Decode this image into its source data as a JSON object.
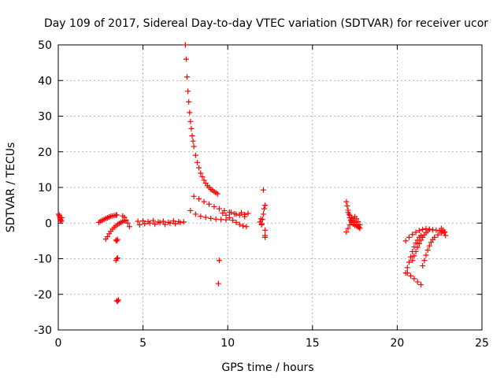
{
  "chart_data": {
    "type": "scatter",
    "title": "Day 109 of 2017, Sidereal Day-to-day VTEC variation (SDTVAR) for receiver ucor",
    "xlabel": "GPS time / hours",
    "ylabel": "SDTVAR / TECUs",
    "xlim": [
      0,
      25
    ],
    "ylim": [
      -30,
      50
    ],
    "xticks": [
      "0",
      "5",
      "10",
      "15",
      "20",
      "25"
    ],
    "yticks": [
      "-30",
      "-20",
      "-10",
      "0",
      "10",
      "20",
      "30",
      "40",
      "50"
    ],
    "grid": true,
    "marker": "+",
    "color": "#ff0000",
    "series": [
      {
        "name": "t0",
        "x": [
          0.02,
          0.05,
          0.08,
          0.1,
          0.12,
          0.15,
          0.18,
          0.2
        ],
        "y": [
          2.5,
          2.2,
          1.8,
          1.4,
          1.0,
          0.8,
          0.5,
          1.5
        ]
      },
      {
        "name": "t1",
        "x": [
          2.4,
          2.5,
          2.6,
          2.7,
          2.8,
          2.9,
          3.0,
          3.1,
          3.2,
          3.3,
          3.4,
          3.45
        ],
        "y": [
          0.2,
          0.5,
          0.8,
          1.0,
          1.3,
          1.5,
          1.7,
          1.9,
          2.0,
          2.1,
          2.2,
          2.3
        ]
      },
      {
        "name": "t2",
        "x": [
          2.8,
          2.9,
          3.0,
          3.1,
          3.2,
          3.3,
          3.4,
          3.5,
          3.6,
          3.7,
          3.8,
          3.9
        ],
        "y": [
          -4.5,
          -3.8,
          -3.0,
          -2.3,
          -1.7,
          -1.2,
          -0.8,
          -0.4,
          -0.1,
          0.2,
          0.4,
          0.6
        ]
      },
      {
        "name": "t3",
        "x": [
          3.4,
          3.45,
          3.5
        ],
        "y": [
          -10.5,
          -10.0,
          -9.8
        ]
      },
      {
        "name": "t4",
        "x": [
          3.4,
          3.45,
          3.5
        ],
        "y": [
          -4.8,
          -5.0,
          -4.6
        ]
      },
      {
        "name": "t5",
        "x": [
          3.45,
          3.5,
          3.55
        ],
        "y": [
          -21.8,
          -22.0,
          -21.6
        ]
      },
      {
        "name": "t6",
        "x": [
          3.8,
          3.9,
          4.0,
          4.1,
          4.2
        ],
        "y": [
          2.0,
          1.6,
          0.8,
          0.0,
          -1.0
        ]
      },
      {
        "name": "t7",
        "x": [
          4.7,
          5.0,
          5.3,
          5.6,
          5.9,
          6.2,
          6.5,
          6.8,
          7.1,
          7.4
        ],
        "y": [
          0.5,
          0.6,
          0.4,
          0.7,
          0.3,
          0.5,
          0.2,
          0.6,
          0.4,
          0.3
        ]
      },
      {
        "name": "t8",
        "x": [
          4.8,
          5.1,
          5.4,
          5.7,
          6.0,
          6.3,
          6.6,
          6.9,
          7.2
        ],
        "y": [
          -0.5,
          -0.2,
          0.0,
          -0.3,
          0.1,
          -0.4,
          0.0,
          -0.2,
          0.1
        ]
      },
      {
        "name": "t9",
        "x": [
          7.5,
          7.55,
          7.6,
          7.65,
          7.7,
          7.75,
          7.8,
          7.85,
          7.9,
          7.95,
          8.0,
          8.1,
          8.2,
          8.3,
          8.4,
          8.5,
          8.6,
          8.7,
          8.8,
          8.9,
          9.0,
          9.1,
          9.2,
          9.3,
          9.4
        ],
        "y": [
          50,
          46,
          41,
          37,
          34,
          31,
          28.5,
          26.5,
          24.5,
          23,
          21.5,
          19,
          17,
          15.5,
          14,
          13,
          12,
          11.2,
          10.5,
          10,
          9.5,
          9.2,
          8.8,
          8.5,
          8.2
        ]
      },
      {
        "name": "t10",
        "x": [
          8.0,
          8.3,
          8.6,
          8.9,
          9.2,
          9.5,
          9.8,
          10.1,
          10.4,
          10.7,
          11.0
        ],
        "y": [
          7.5,
          6.8,
          6.0,
          5.3,
          4.6,
          4.0,
          3.5,
          3.0,
          2.6,
          2.2,
          1.8
        ]
      },
      {
        "name": "t11",
        "x": [
          7.8,
          8.1,
          8.4,
          8.7,
          9.0,
          9.3,
          9.6,
          9.9
        ],
        "y": [
          3.5,
          2.5,
          1.9,
          1.6,
          1.3,
          1.1,
          1.0,
          0.9
        ]
      },
      {
        "name": "t12",
        "x": [
          9.7,
          9.9,
          10.1,
          10.3,
          10.5,
          10.7,
          10.9,
          11.1
        ],
        "y": [
          2.8,
          2.2,
          1.5,
          0.8,
          0.2,
          -0.4,
          -0.8,
          -1.0
        ]
      },
      {
        "name": "t13",
        "x": [
          10.2,
          10.5,
          10.8,
          11.0,
          11.2
        ],
        "y": [
          3.0,
          2.5,
          2.9,
          2.4,
          2.7
        ]
      },
      {
        "name": "t14",
        "x": [
          12.0,
          12.05,
          12.1,
          12.15,
          12.2,
          12.2,
          12.2,
          12.2
        ],
        "y": [
          -0.5,
          1.0,
          2.5,
          4.0,
          5.0,
          -2.0,
          -3.5,
          -4.0
        ]
      },
      {
        "name": "t15",
        "x": [
          11.9,
          11.95,
          12.0
        ],
        "y": [
          0.3,
          1.2,
          -0.2
        ]
      },
      {
        "name": "t16",
        "x": [
          12.1
        ],
        "y": [
          9.3
        ]
      },
      {
        "name": "t17",
        "x": [
          9.5
        ],
        "y": [
          -10.5
        ]
      },
      {
        "name": "t18",
        "x": [
          9.45
        ],
        "y": [
          -17.0
        ]
      },
      {
        "name": "t19",
        "x": [
          17.0,
          17.05,
          17.1,
          17.15,
          17.2,
          17.25,
          17.3,
          17.4,
          17.5,
          17.6,
          17.7,
          17.75
        ],
        "y": [
          6.0,
          4.8,
          3.6,
          2.5,
          1.5,
          0.8,
          0.2,
          -0.3,
          -0.6,
          -0.8,
          -1.0,
          -1.2
        ]
      },
      {
        "name": "t20",
        "x": [
          17.0,
          17.1,
          17.2,
          17.3,
          17.4,
          17.5,
          17.6,
          17.7,
          17.8
        ],
        "y": [
          -2.5,
          -1.5,
          -0.5,
          0.5,
          1.2,
          1.8,
          1.2,
          0.4,
          -0.5
        ]
      },
      {
        "name": "t21",
        "x": [
          17.1,
          17.2,
          17.3,
          17.4,
          17.5,
          17.6,
          17.7,
          17.8
        ],
        "y": [
          3.0,
          2.2,
          1.5,
          0.8,
          0.2,
          -0.4,
          -1.0,
          -1.5
        ]
      },
      {
        "name": "t22",
        "x": [
          20.5,
          20.7,
          20.9,
          21.1,
          21.3,
          21.5,
          21.7,
          21.9,
          22.1,
          22.3,
          22.5,
          22.7,
          22.8
        ],
        "y": [
          -5.0,
          -4.0,
          -3.2,
          -2.6,
          -2.1,
          -1.8,
          -1.6,
          -1.7,
          -1.9,
          -2.0,
          -2.2,
          -2.4,
          -2.5
        ]
      },
      {
        "name": "t23",
        "x": [
          20.5,
          20.6,
          20.7,
          20.8,
          20.9,
          21.0,
          21.1,
          21.2,
          21.3,
          21.4
        ],
        "y": [
          -14.0,
          -12.5,
          -11.0,
          -9.5,
          -8.0,
          -6.7,
          -5.6,
          -4.8,
          -4.0,
          -3.5
        ]
      },
      {
        "name": "t24",
        "x": [
          20.6,
          20.8,
          21.0,
          21.2,
          21.4
        ],
        "y": [
          -14.0,
          -14.8,
          -15.6,
          -16.5,
          -17.3
        ]
      },
      {
        "name": "t25",
        "x": [
          20.9,
          21.0,
          21.1,
          21.2,
          21.3,
          21.4,
          21.5,
          21.6,
          21.7,
          21.8,
          21.9
        ],
        "y": [
          -10.5,
          -9.2,
          -8.0,
          -6.8,
          -5.8,
          -4.8,
          -4.0,
          -3.3,
          -2.7,
          -2.2,
          -1.8
        ]
      },
      {
        "name": "t26",
        "x": [
          21.5,
          21.6,
          21.7,
          21.8,
          21.9,
          22.0,
          22.1,
          22.2,
          22.4,
          22.6,
          22.8
        ],
        "y": [
          -12.0,
          -10.5,
          -9.0,
          -7.6,
          -6.4,
          -5.4,
          -4.6,
          -4.0,
          -3.3,
          -2.8,
          -2.5
        ]
      },
      {
        "name": "t27",
        "x": [
          22.6,
          22.7,
          22.8,
          22.85
        ],
        "y": [
          -1.5,
          -2.0,
          -2.6,
          -3.5
        ]
      }
    ]
  }
}
